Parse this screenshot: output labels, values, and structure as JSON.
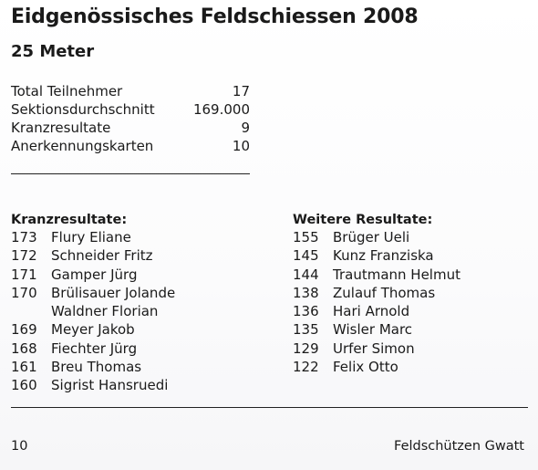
{
  "title": "Eidgenössisches Feldschiessen 2008",
  "subtitle": "25 Meter",
  "stats": [
    {
      "label": "Total Teilnehmer",
      "value": "17"
    },
    {
      "label": "Sektionsdurchschnitt",
      "value": "169.000"
    },
    {
      "label": "Kranzresultate",
      "value": "9"
    },
    {
      "label": "Anerkennungskarten",
      "value": "10"
    }
  ],
  "kranz": {
    "heading": "Kranzresultate:",
    "rows": [
      {
        "score": "173",
        "name": "Flury Eliane"
      },
      {
        "score": "172",
        "name": "Schneider Fritz"
      },
      {
        "score": "171",
        "name": "Gamper Jürg"
      },
      {
        "score": "170",
        "name": "Brülisauer Jolande"
      },
      {
        "score": "",
        "name": "Waldner Florian"
      },
      {
        "score": "169",
        "name": "Meyer Jakob"
      },
      {
        "score": "168",
        "name": "Fiechter Jürg"
      },
      {
        "score": "161",
        "name": "Breu Thomas"
      },
      {
        "score": "160",
        "name": "Sigrist Hansruedi"
      }
    ]
  },
  "weitere": {
    "heading": "Weitere Resultate:",
    "rows": [
      {
        "score": "155",
        "name": "Brüger Ueli"
      },
      {
        "score": "145",
        "name": "Kunz Franziska"
      },
      {
        "score": "144",
        "name": "Trautmann Helmut"
      },
      {
        "score": "138",
        "name": "Zulauf Thomas"
      },
      {
        "score": "136",
        "name": "Hari Arnold"
      },
      {
        "score": "135",
        "name": "Wisler Marc"
      },
      {
        "score": "129",
        "name": "Urfer Simon"
      },
      {
        "score": "122",
        "name": "Felix Otto"
      }
    ]
  },
  "footer": {
    "page_number": "10",
    "publication": "Feldschützen Gwatt"
  }
}
